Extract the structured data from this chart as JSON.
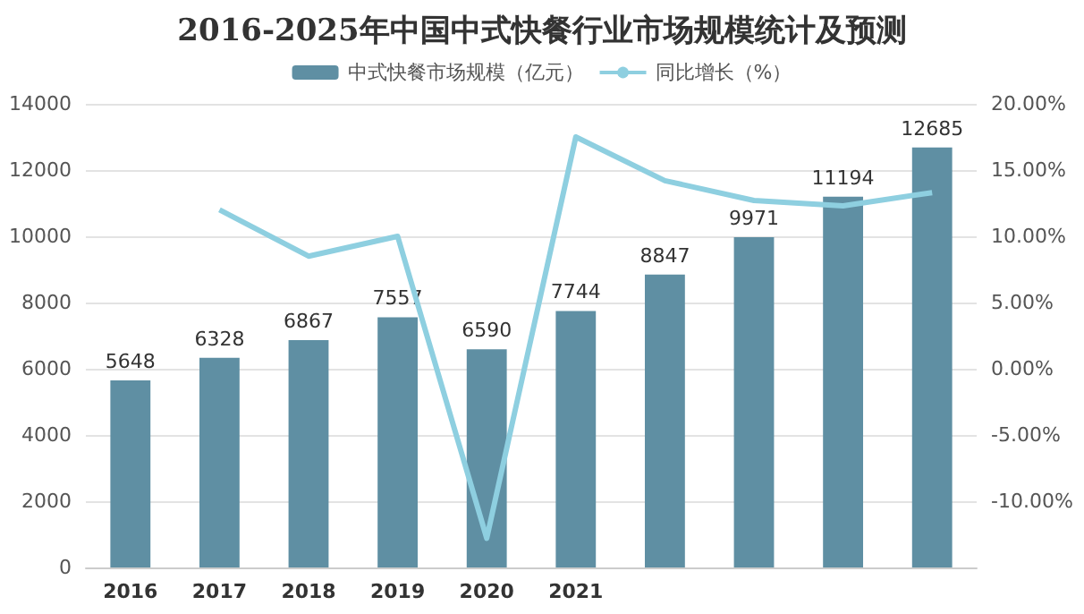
{
  "chart_data": {
    "type": "bar",
    "title": "2016-2025年中国中式快餐行业市场规模统计及预测",
    "categories": [
      "2016",
      "2017",
      "2018",
      "2019",
      "2020",
      "2021",
      null,
      null,
      null,
      null
    ],
    "series": [
      {
        "name": "中式快餐市场规模（亿元）",
        "color": "#5f8fa3",
        "values": [
          5648,
          6328,
          6867,
          7557,
          6590,
          7744,
          8847,
          9971,
          11194,
          12685
        ],
        "data_labels": true
      },
      {
        "name": "同比增长（%）",
        "type": "line",
        "axis": "y2",
        "color": "#8ecfe0",
        "values": [
          null,
          12.0,
          8.5,
          10.0,
          -12.8,
          17.5,
          14.2,
          12.7,
          12.3,
          13.3
        ]
      }
    ],
    "ylim": [
      0,
      14000
    ],
    "yticks": [
      0,
      2000,
      4000,
      6000,
      8000,
      10000,
      12000,
      14000
    ],
    "y2lim": [
      -15,
      20
    ],
    "y2ticks": [
      {
        "value": -10,
        "label": "-10.00%"
      },
      {
        "value": -5,
        "label": "-5.00%"
      },
      {
        "value": 0,
        "label": "0.00%"
      },
      {
        "value": 5,
        "label": "5.00%"
      },
      {
        "value": 10,
        "label": "10.00%"
      },
      {
        "value": 15,
        "label": "15.00%"
      },
      {
        "value": 20,
        "label": "20.00%"
      }
    ],
    "grid": "y",
    "legend": "top",
    "marker": "none",
    "line_style": "solid"
  }
}
